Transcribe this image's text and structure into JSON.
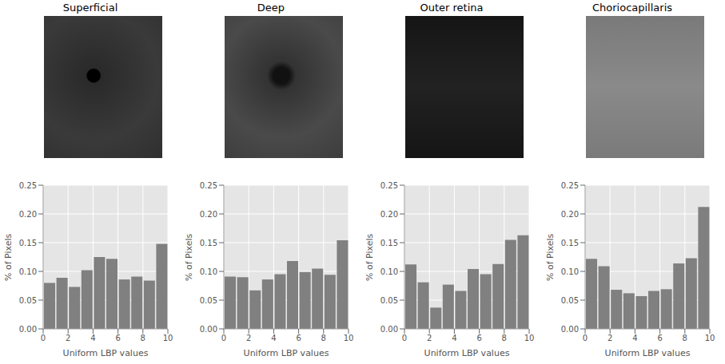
{
  "chart_data": [
    {
      "type": "bar",
      "title": "Superficial",
      "x_label": "Uniform LBP values",
      "y_label": "% of Pixels",
      "bins": [
        0,
        1,
        2,
        3,
        4,
        5,
        6,
        7,
        8,
        9,
        10
      ],
      "values": [
        0.08,
        0.089,
        0.073,
        0.102,
        0.125,
        0.122,
        0.086,
        0.091,
        0.084,
        0.148
      ],
      "color": "#808080",
      "xlim": [
        0,
        10
      ],
      "xticks": [
        0,
        2,
        4,
        6,
        8,
        10
      ],
      "ylim": [
        0,
        0.25
      ],
      "yticks": [
        {
          "value": 0,
          "label": "0.00"
        },
        {
          "value": 0.05,
          "label": "0.05"
        },
        {
          "value": 0.1,
          "label": "0.10"
        },
        {
          "value": 0.15,
          "label": "0.15"
        },
        {
          "value": 0.2,
          "label": "0.20"
        },
        {
          "value": 0.25,
          "label": "0.25"
        }
      ],
      "grid": true
    },
    {
      "type": "bar",
      "title": "Deep",
      "x_label": "Uniform LBP values",
      "y_label": "% of Pixels",
      "bins": [
        0,
        1,
        2,
        3,
        4,
        5,
        6,
        7,
        8,
        9,
        10
      ],
      "values": [
        0.091,
        0.09,
        0.067,
        0.086,
        0.095,
        0.118,
        0.099,
        0.105,
        0.094,
        0.154
      ],
      "color": "#808080",
      "xlim": [
        0,
        10
      ],
      "xticks": [
        0,
        2,
        4,
        6,
        8,
        10
      ],
      "ylim": [
        0,
        0.25
      ],
      "yticks": [
        {
          "value": 0,
          "label": "0.00"
        },
        {
          "value": 0.05,
          "label": "0.05"
        },
        {
          "value": 0.1,
          "label": "0.10"
        },
        {
          "value": 0.15,
          "label": "0.15"
        },
        {
          "value": 0.2,
          "label": "0.20"
        },
        {
          "value": 0.25,
          "label": "0.25"
        }
      ],
      "grid": true
    },
    {
      "type": "bar",
      "title": "Outer retina",
      "x_label": "Uniform LBP values",
      "y_label": "% of Pixels",
      "bins": [
        0,
        1,
        2,
        3,
        4,
        5,
        6,
        7,
        8,
        9,
        10
      ],
      "values": [
        0.112,
        0.081,
        0.037,
        0.077,
        0.066,
        0.104,
        0.095,
        0.113,
        0.155,
        0.163
      ],
      "color": "#808080",
      "xlim": [
        0,
        10
      ],
      "xticks": [
        0,
        2,
        4,
        6,
        8,
        10
      ],
      "ylim": [
        0,
        0.25
      ],
      "yticks": [
        {
          "value": 0,
          "label": "0.00"
        },
        {
          "value": 0.05,
          "label": "0.05"
        },
        {
          "value": 0.1,
          "label": "0.10"
        },
        {
          "value": 0.15,
          "label": "0.15"
        },
        {
          "value": 0.2,
          "label": "0.20"
        },
        {
          "value": 0.25,
          "label": "0.25"
        }
      ],
      "grid": true
    },
    {
      "type": "bar",
      "title": "Choriocapillaris",
      "x_label": "Uniform LBP values",
      "y_label": "% of Pixels",
      "bins": [
        0,
        1,
        2,
        3,
        4,
        5,
        6,
        7,
        8,
        9,
        10
      ],
      "values": [
        0.122,
        0.109,
        0.068,
        0.062,
        0.057,
        0.066,
        0.069,
        0.114,
        0.123,
        0.212
      ],
      "color": "#808080",
      "xlim": [
        0,
        10
      ],
      "xticks": [
        0,
        2,
        4,
        6,
        8,
        10
      ],
      "ylim": [
        0,
        0.25
      ],
      "yticks": [
        {
          "value": 0,
          "label": "0.00"
        },
        {
          "value": 0.05,
          "label": "0.05"
        },
        {
          "value": 0.1,
          "label": "0.10"
        },
        {
          "value": 0.15,
          "label": "0.15"
        },
        {
          "value": 0.2,
          "label": "0.20"
        },
        {
          "value": 0.25,
          "label": "0.25"
        }
      ],
      "grid": true
    }
  ]
}
